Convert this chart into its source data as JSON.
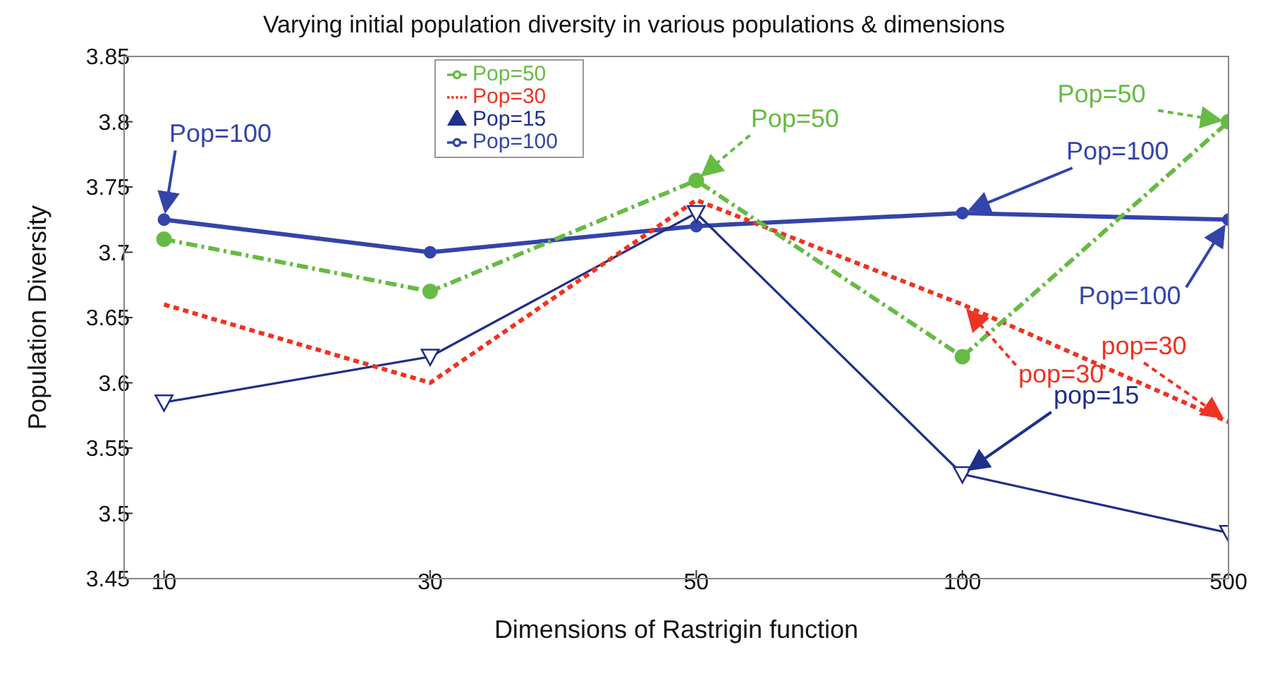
{
  "chart_data": {
    "type": "line",
    "title": "Varying initial population diversity in various populations & dimensions",
    "xlabel": "Dimensions of Rastrigin function",
    "ylabel": "Population Diversity",
    "categories": [
      "10",
      "30",
      "50",
      "100",
      "500"
    ],
    "series": [
      {
        "name": "Pop=50",
        "color": "#66bb44",
        "values": [
          3.71,
          3.67,
          3.755,
          3.62,
          3.8
        ],
        "marker": "circle",
        "line_style": "dashed"
      },
      {
        "name": "Pop=30",
        "color": "#ee3322",
        "values": [
          3.66,
          3.6,
          3.74,
          3.66,
          3.57
        ],
        "marker": "none",
        "line_style": "dotted"
      },
      {
        "name": "Pop=15",
        "color": "#1f2f8a",
        "values": [
          3.585,
          3.62,
          3.73,
          3.53,
          3.485
        ],
        "marker": "triangle",
        "line_style": "solid"
      },
      {
        "name": "Pop=100",
        "color": "#3344aa",
        "values": [
          3.725,
          3.7,
          3.72,
          3.73,
          3.725
        ],
        "marker": "circle",
        "line_style": "solid"
      }
    ],
    "ylim": [
      3.45,
      3.85
    ],
    "yticks": [
      3.45,
      3.5,
      3.55,
      3.6,
      3.65,
      3.7,
      3.75,
      3.8,
      3.85
    ],
    "grid": false,
    "legend": "top",
    "annotations": [
      {
        "text": "Pop=100",
        "x": "10",
        "y": 3.725
      },
      {
        "text": "Pop=50",
        "x": "50",
        "y": 3.755
      },
      {
        "text": "Pop=100",
        "x": "100",
        "y": 3.73
      },
      {
        "text": "pop=30",
        "x": "100",
        "y": 3.66
      },
      {
        "text": "pop=15",
        "x": "100",
        "y": 3.53
      },
      {
        "text": "Pop=50",
        "x": "500",
        "y": 3.8
      },
      {
        "text": "Pop=100",
        "x": "500",
        "y": 3.725
      },
      {
        "text": "pop=30",
        "x": "500",
        "y": 3.57
      }
    ]
  }
}
